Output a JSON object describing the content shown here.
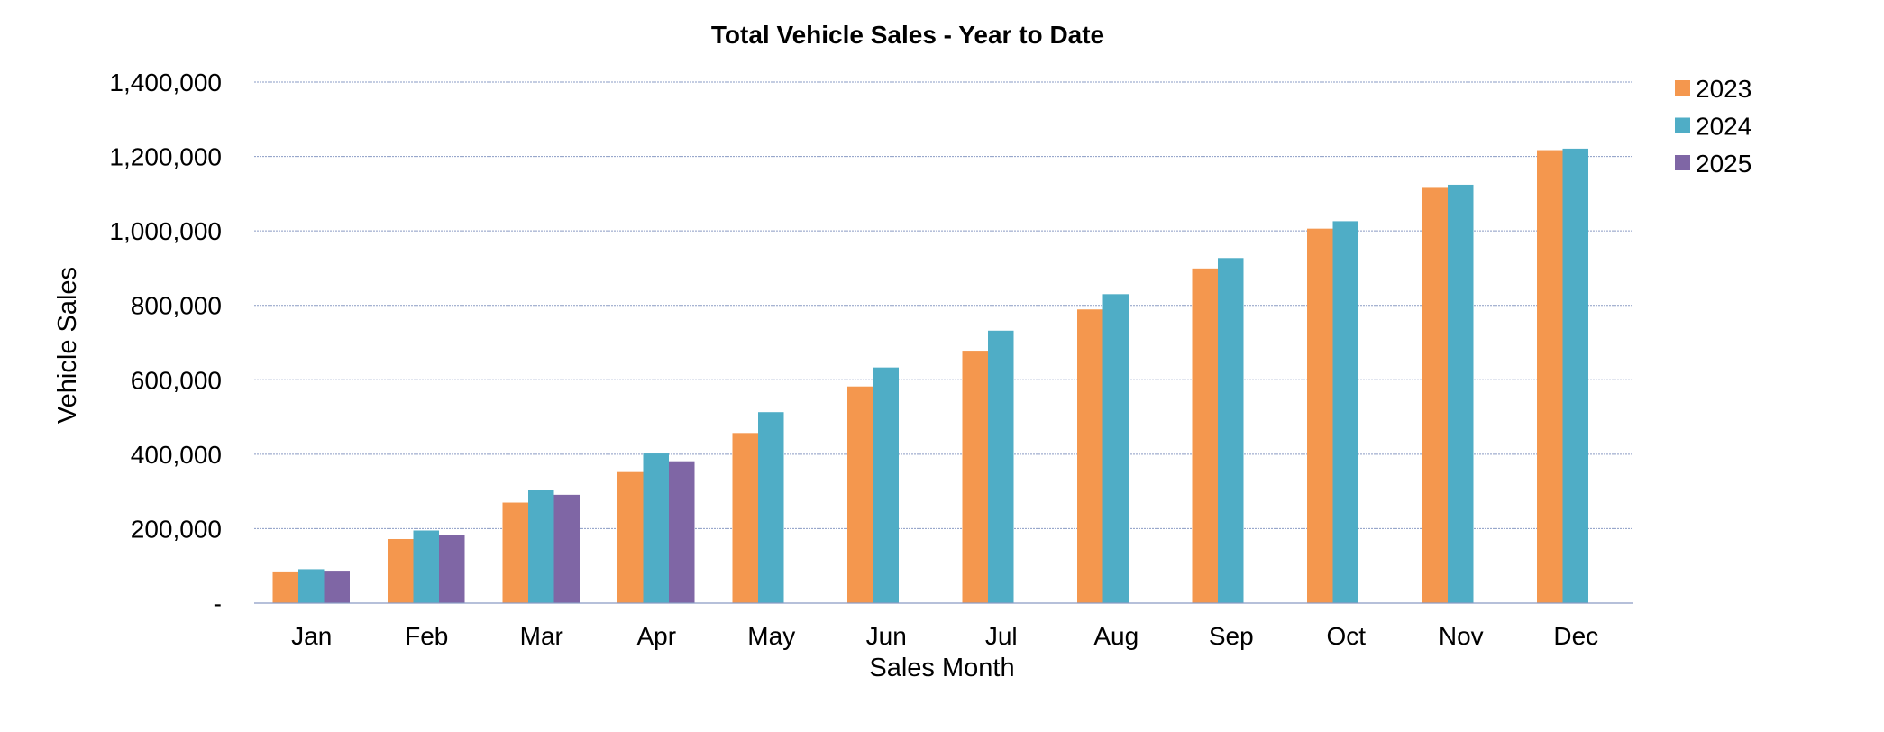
{
  "chart_data": {
    "type": "bar",
    "title": "Total Vehicle Sales - Year to Date",
    "xlabel": "Sales Month",
    "ylabel": "Vehicle Sales",
    "categories": [
      "Jan",
      "Feb",
      "Mar",
      "Apr",
      "May",
      "Jun",
      "Jul",
      "Aug",
      "Sep",
      "Oct",
      "Nov",
      "Dec"
    ],
    "ylim": [
      0,
      1400000
    ],
    "yticks": [
      0,
      200000,
      400000,
      600000,
      800000,
      1000000,
      1200000,
      1400000
    ],
    "ytick_labels": [
      "-",
      "200,000",
      "400,000",
      "600,000",
      "800,000",
      "1,000,000",
      "1,200,000",
      "1,400,000"
    ],
    "grid": true,
    "legend_position": "top-right",
    "series": [
      {
        "name": "2023",
        "color": "#F4974E",
        "values": [
          85000,
          172000,
          270000,
          352000,
          457000,
          582000,
          678000,
          789000,
          899000,
          1006000,
          1118000,
          1217000
        ]
      },
      {
        "name": "2024",
        "color": "#4FADC6",
        "values": [
          91000,
          195000,
          305000,
          402000,
          513000,
          633000,
          732000,
          830000,
          927000,
          1026000,
          1124000,
          1221000
        ]
      },
      {
        "name": "2025",
        "color": "#7F66A5",
        "values": [
          87000,
          184000,
          291000,
          381000,
          null,
          null,
          null,
          null,
          null,
          null,
          null,
          null
        ]
      }
    ]
  }
}
